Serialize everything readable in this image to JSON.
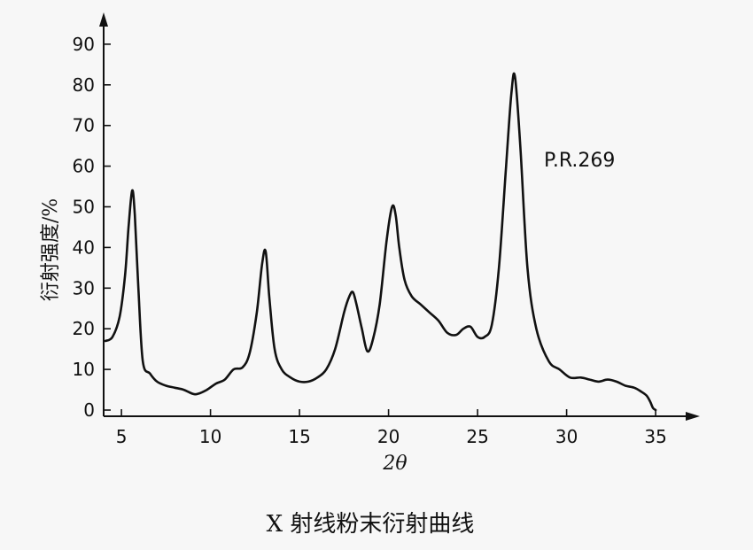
{
  "chart_data": {
    "type": "line",
    "caption": "X 射线粉末衍射曲线",
    "xlabel": "2θ",
    "ylabel": "衍射强度/%",
    "annotation": "P.R.269",
    "xlim": [
      4,
      36
    ],
    "ylim": [
      0,
      95
    ],
    "xticks": [
      5,
      10,
      15,
      20,
      25,
      30,
      35
    ],
    "yticks": [
      0,
      10,
      20,
      30,
      40,
      50,
      60,
      70,
      80,
      90
    ],
    "grid": false,
    "series": [
      {
        "x": [
          4.1,
          4.5,
          4.9,
          5.2,
          5.4,
          5.6,
          5.75,
          5.95,
          6.2,
          6.6,
          7.0,
          7.5,
          8.0,
          8.5,
          9.0,
          9.3,
          9.8,
          10.3,
          10.8,
          11.3,
          11.8,
          12.2,
          12.6,
          12.9,
          13.1,
          13.3,
          13.6,
          14.0,
          14.5,
          15.0,
          15.5,
          16.0,
          16.5,
          17.0,
          17.5,
          17.8,
          18.0,
          18.2,
          18.5,
          18.8,
          19.1,
          19.5,
          19.9,
          20.2,
          20.4,
          20.6,
          20.9,
          21.3,
          21.8,
          22.3,
          22.8,
          23.3,
          23.8,
          24.2,
          24.6,
          25.0,
          25.4,
          25.8,
          26.2,
          26.6,
          26.9,
          27.1,
          27.4,
          27.8,
          28.3,
          29.0,
          29.6,
          30.2,
          30.8,
          31.3,
          31.8,
          32.3,
          32.8,
          33.3,
          33.8,
          34.2,
          34.5,
          34.7,
          34.85,
          35.0
        ],
        "y": [
          17,
          18,
          23,
          33,
          45,
          54,
          48,
          30,
          12,
          9,
          7,
          6,
          5.5,
          5,
          4,
          4,
          5,
          6.5,
          7.5,
          10,
          10.5,
          14,
          24,
          36,
          39,
          28,
          15,
          10,
          8,
          7,
          7,
          8,
          10,
          15,
          24,
          28,
          29,
          26,
          20,
          14.5,
          17,
          26,
          42,
          50,
          48,
          40,
          32,
          28,
          26,
          24,
          22,
          19,
          18.5,
          20,
          20.5,
          18,
          18,
          21,
          35,
          60,
          78,
          82,
          65,
          35,
          20,
          12,
          10,
          8,
          8,
          7.5,
          7,
          7.5,
          7,
          6,
          5.5,
          4.5,
          3.5,
          2,
          0.5,
          0
        ]
      }
    ]
  }
}
